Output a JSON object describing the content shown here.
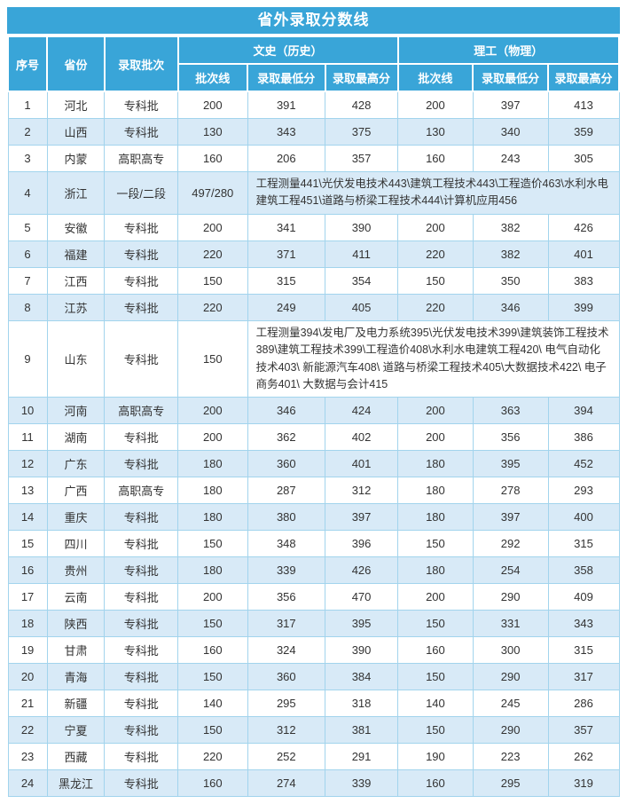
{
  "title": "省外录取分数线",
  "colors": {
    "header_bg": "#39a5d8",
    "header_text": "#ffffff",
    "row_alt_bg": "#d8eaf7",
    "row_bg": "#ffffff",
    "body_border": "#a2d4ed",
    "body_text": "#333333"
  },
  "header": {
    "serial": "序号",
    "province": "省份",
    "batch": "录取批次",
    "group_arts": "文史（历史）",
    "group_science": "理工（物理）",
    "sub_line": "批次线",
    "sub_min": "录取最低分",
    "sub_max": "录取最高分"
  },
  "rows": [
    {
      "no": "1",
      "province": "河北",
      "batch": "专科批",
      "cells": [
        "200",
        "391",
        "428",
        "200",
        "397",
        "413"
      ]
    },
    {
      "no": "2",
      "province": "山西",
      "batch": "专科批",
      "cells": [
        "130",
        "343",
        "375",
        "130",
        "340",
        "359"
      ]
    },
    {
      "no": "3",
      "province": "内蒙",
      "batch": "高职高专",
      "cells": [
        "160",
        "206",
        "357",
        "160",
        "243",
        "305"
      ]
    },
    {
      "no": "4",
      "province": "浙江",
      "batch": "一段/二段",
      "line": "497/280",
      "merged": "工程测量441\\光伏发电技术443\\建筑工程技术443\\工程造价463\\水利水电建筑工程451\\道路与桥梁工程技术444\\计算机应用456"
    },
    {
      "no": "5",
      "province": "安徽",
      "batch": "专科批",
      "cells": [
        "200",
        "341",
        "390",
        "200",
        "382",
        "426"
      ]
    },
    {
      "no": "6",
      "province": "福建",
      "batch": "专科批",
      "cells": [
        "220",
        "371",
        "411",
        "220",
        "382",
        "401"
      ]
    },
    {
      "no": "7",
      "province": "江西",
      "batch": "专科批",
      "cells": [
        "150",
        "315",
        "354",
        "150",
        "350",
        "383"
      ]
    },
    {
      "no": "8",
      "province": "江苏",
      "batch": "专科批",
      "cells": [
        "220",
        "249",
        "405",
        "220",
        "346",
        "399"
      ]
    },
    {
      "no": "9",
      "province": "山东",
      "batch": "专科批",
      "line": "150",
      "merged": "工程测量394\\发电厂及电力系统395\\光伏发电技术399\\建筑装饰工程技术389\\建筑工程技术399\\工程造价408\\水利水电建筑工程420\\ 电气自动化技术403\\ 新能源汽车408\\ 道路与桥梁工程技术405\\大数据技术422\\ 电子商务401\\ 大数据与会计415"
    },
    {
      "no": "10",
      "province": "河南",
      "batch": "高职高专",
      "cells": [
        "200",
        "346",
        "424",
        "200",
        "363",
        "394"
      ]
    },
    {
      "no": "11",
      "province": "湖南",
      "batch": "专科批",
      "cells": [
        "200",
        "362",
        "402",
        "200",
        "356",
        "386"
      ]
    },
    {
      "no": "12",
      "province": "广东",
      "batch": "专科批",
      "cells": [
        "180",
        "360",
        "401",
        "180",
        "395",
        "452"
      ]
    },
    {
      "no": "13",
      "province": "广西",
      "batch": "高职高专",
      "cells": [
        "180",
        "287",
        "312",
        "180",
        "278",
        "293"
      ]
    },
    {
      "no": "14",
      "province": "重庆",
      "batch": "专科批",
      "cells": [
        "180",
        "380",
        "397",
        "180",
        "397",
        "400"
      ]
    },
    {
      "no": "15",
      "province": "四川",
      "batch": "专科批",
      "cells": [
        "150",
        "348",
        "396",
        "150",
        "292",
        "315"
      ]
    },
    {
      "no": "16",
      "province": "贵州",
      "batch": "专科批",
      "cells": [
        "180",
        "339",
        "426",
        "180",
        "254",
        "358"
      ]
    },
    {
      "no": "17",
      "province": "云南",
      "batch": "专科批",
      "cells": [
        "200",
        "356",
        "470",
        "200",
        "290",
        "409"
      ]
    },
    {
      "no": "18",
      "province": "陕西",
      "batch": "专科批",
      "cells": [
        "150",
        "317",
        "395",
        "150",
        "331",
        "343"
      ]
    },
    {
      "no": "19",
      "province": "甘肃",
      "batch": "专科批",
      "cells": [
        "160",
        "324",
        "390",
        "160",
        "300",
        "315"
      ]
    },
    {
      "no": "20",
      "province": "青海",
      "batch": "专科批",
      "cells": [
        "150",
        "360",
        "384",
        "150",
        "290",
        "317"
      ]
    },
    {
      "no": "21",
      "province": "新疆",
      "batch": "专科批",
      "cells": [
        "140",
        "295",
        "318",
        "140",
        "245",
        "286"
      ]
    },
    {
      "no": "22",
      "province": "宁夏",
      "batch": "专科批",
      "cells": [
        "150",
        "312",
        "381",
        "150",
        "290",
        "357"
      ]
    },
    {
      "no": "23",
      "province": "西藏",
      "batch": "专科批",
      "cells": [
        "220",
        "252",
        "291",
        "190",
        "223",
        "262"
      ]
    },
    {
      "no": "24",
      "province": "黑龙江",
      "batch": "专科批",
      "cells": [
        "160",
        "274",
        "339",
        "160",
        "295",
        "319"
      ]
    }
  ]
}
